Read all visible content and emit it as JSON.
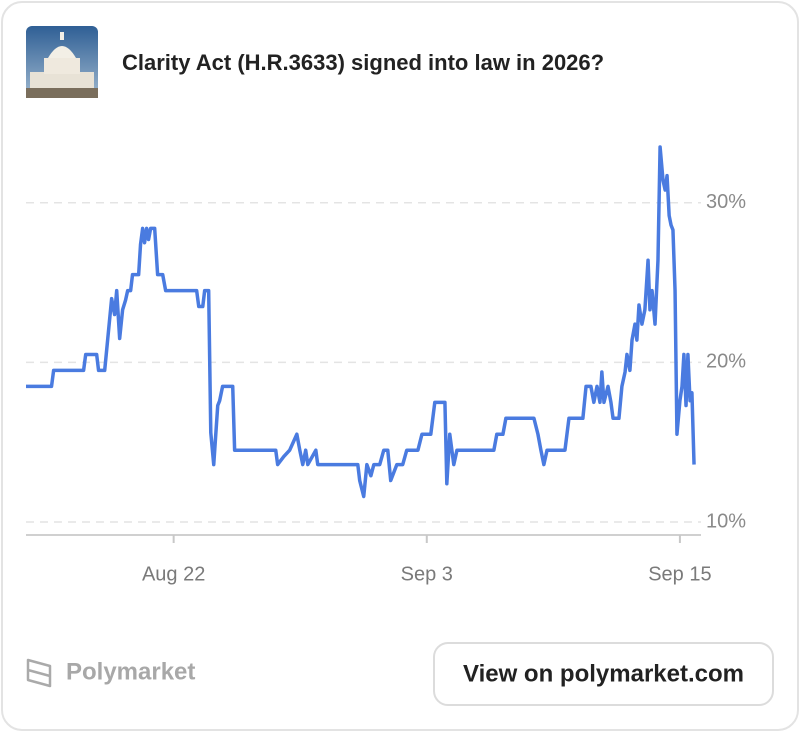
{
  "chart_data": {
    "type": "line",
    "title": "Clarity Act (H.R.3633) signed into law in 2026?",
    "x": [
      15.0,
      16.21,
      16.31,
      17.73,
      17.83,
      18.35,
      18.44,
      18.73,
      18.87,
      19.06,
      19.2,
      19.3,
      19.44,
      19.58,
      19.72,
      19.82,
      19.96,
      20.05,
      20.34,
      20.43,
      20.53,
      20.62,
      20.72,
      20.81,
      20.91,
      21.1,
      21.24,
      21.48,
      21.62,
      23.09,
      23.19,
      23.38,
      23.47,
      23.66,
      23.76,
      23.9,
      24.09,
      24.18,
      24.32,
      24.8,
      24.89,
      26.84,
      26.93,
      27.22,
      27.5,
      27.84,
      27.98,
      28.12,
      28.26,
      28.36,
      28.74,
      28.83,
      30.73,
      30.82,
      31.01,
      31.16,
      31.35,
      31.49,
      31.77,
      31.96,
      32.15,
      32.29,
      32.58,
      32.86,
      33.05,
      33.58,
      33.77,
      34.19,
      34.38,
      34.86,
      34.95,
      35.09,
      35.28,
      35.43,
      37.18,
      37.32,
      37.61,
      37.75,
      39.08,
      39.27,
      39.41,
      39.55,
      39.7,
      40.55,
      40.74,
      41.4,
      41.55,
      41.78,
      41.92,
      42.07,
      42.21,
      42.3,
      42.4,
      42.59,
      42.73,
      42.83,
      43.11,
      43.25,
      43.4,
      43.49,
      43.63,
      43.73,
      43.87,
      43.96,
      44.06,
      44.2,
      44.34,
      44.49,
      44.58,
      44.68,
      44.82,
      44.96,
      45.06,
      45.2,
      45.3,
      45.39,
      45.49,
      45.58,
      45.67,
      45.77,
      45.86,
      46.0,
      46.1,
      46.19,
      46.29,
      46.38,
      46.48,
      46.57,
      46.67
    ],
    "series": [
      {
        "color": "#4a7be0",
        "values": [
          18.5,
          18.5,
          19.5,
          19.5,
          20.5,
          20.5,
          19.5,
          19.5,
          21.4,
          24.0,
          23.0,
          24.5,
          21.5,
          23.3,
          23.9,
          24.5,
          24.5,
          25.5,
          25.5,
          27.4,
          28.4,
          27.5,
          28.4,
          27.7,
          28.4,
          28.4,
          25.5,
          25.5,
          24.5,
          24.5,
          23.5,
          23.5,
          24.5,
          24.5,
          15.6,
          13.6,
          17.3,
          17.6,
          18.5,
          18.5,
          14.5,
          14.5,
          13.6,
          14.1,
          14.5,
          15.5,
          14.5,
          13.6,
          14.5,
          13.6,
          14.5,
          13.6,
          13.6,
          12.6,
          11.6,
          13.6,
          12.9,
          13.6,
          13.6,
          14.5,
          14.5,
          12.6,
          13.6,
          13.6,
          14.5,
          14.5,
          15.5,
          15.5,
          17.5,
          17.5,
          12.4,
          15.5,
          13.6,
          14.5,
          14.5,
          15.5,
          15.5,
          16.5,
          16.5,
          15.5,
          14.5,
          13.6,
          14.5,
          14.5,
          16.5,
          16.5,
          18.5,
          18.5,
          17.5,
          18.5,
          17.5,
          19.4,
          17.5,
          18.5,
          17.5,
          16.5,
          16.5,
          18.5,
          19.4,
          20.5,
          19.5,
          21.4,
          22.4,
          21.4,
          23.6,
          22.4,
          23.3,
          26.4,
          23.3,
          24.5,
          22.4,
          26.4,
          33.5,
          31.4,
          30.8,
          31.7,
          29.2,
          28.6,
          28.3,
          24.5,
          15.5,
          17.6,
          18.5,
          20.5,
          17.3,
          20.5,
          17.6,
          18.1,
          13.6
        ]
      }
    ],
    "xlim": [
      15,
      47
    ],
    "xticks": [
      {
        "value": 22,
        "label": "Aug 22"
      },
      {
        "value": 34,
        "label": "Sep 3"
      },
      {
        "value": 46,
        "label": "Sep 15"
      }
    ],
    "ylim": [
      9,
      35
    ],
    "yticks": [
      {
        "value": 10,
        "label": "10%"
      },
      {
        "value": 20,
        "label": "20%"
      },
      {
        "value": 30,
        "label": "30%"
      }
    ],
    "grid": true
  },
  "footer": {
    "brand": "Polymarket",
    "button": "View on polymarket.com"
  }
}
